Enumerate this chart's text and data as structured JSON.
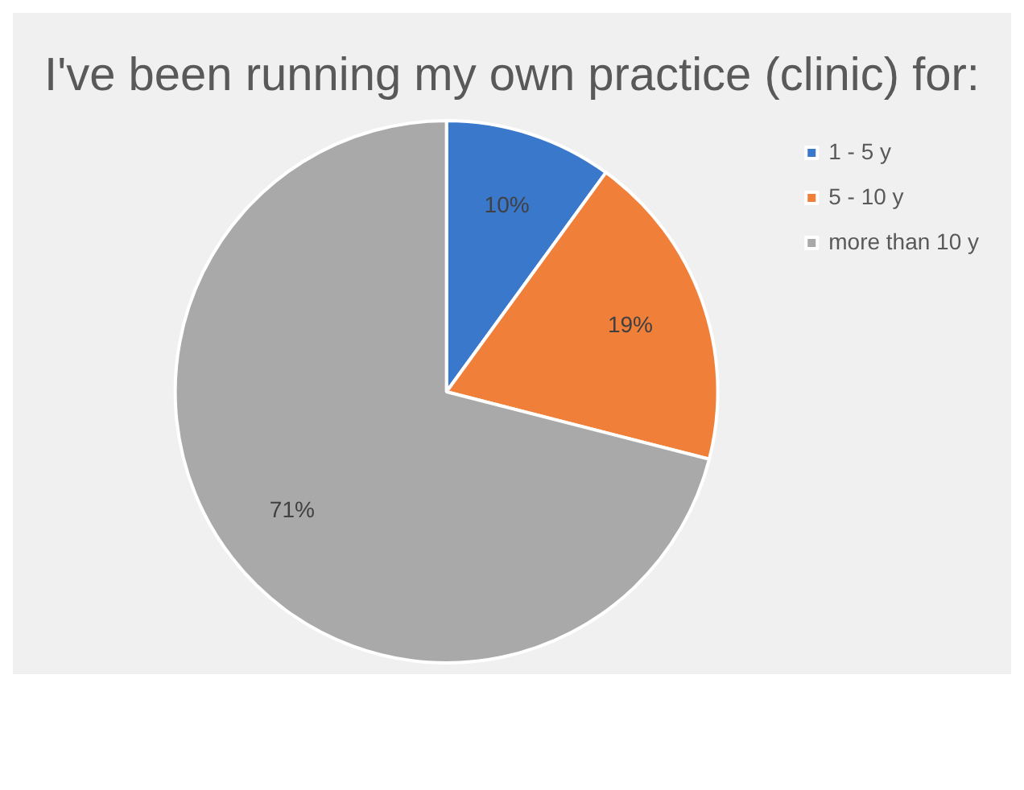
{
  "chart_data": {
    "type": "pie",
    "title": "I've been running my own practice (clinic) for:",
    "categories": [
      "1 - 5 y",
      "5 - 10 y",
      "more than 10 y"
    ],
    "values": [
      10,
      19,
      71
    ],
    "colors": [
      "#3a78cc",
      "#f07f3a",
      "#a9a9a9"
    ],
    "value_labels": [
      "10%",
      "19%",
      "71%"
    ],
    "legend": "right"
  }
}
